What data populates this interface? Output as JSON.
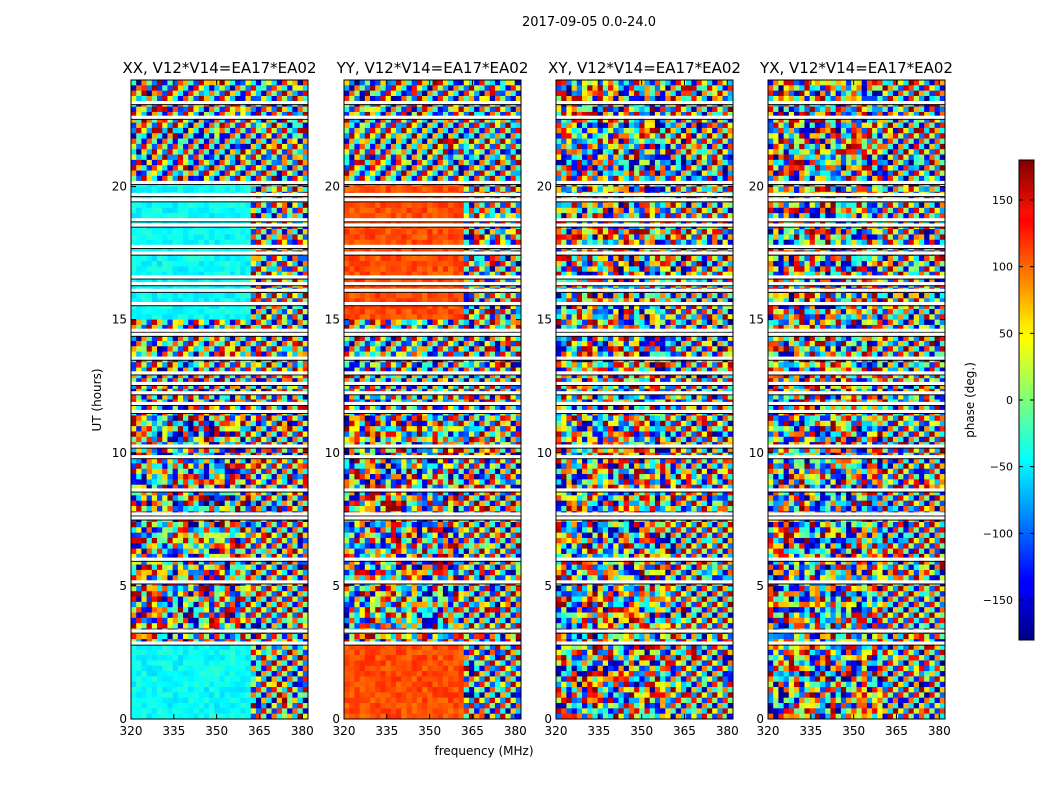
{
  "chart_data": {
    "type": "heatmap",
    "suptitle": "2017-09-05 0.0-24.0",
    "xlabel": "frequency (MHz)",
    "ylabel": "UT (hours)",
    "xlim": [
      320,
      382
    ],
    "ylim": [
      0,
      24
    ],
    "xticks": [
      "320",
      "335",
      "350",
      "365",
      "380"
    ],
    "xtick_values": [
      320,
      335,
      350,
      365,
      380
    ],
    "yticks": [
      "0",
      "5",
      "10",
      "15",
      "20"
    ],
    "ytick_values": [
      0,
      5,
      10,
      15,
      20
    ],
    "colorbar": {
      "label": "phase (deg.)",
      "range": [
        -180,
        180
      ],
      "ticks": [
        "−150",
        "−100",
        "−50",
        "0",
        "50",
        "100",
        "150"
      ],
      "tick_values": [
        -150,
        -100,
        -50,
        0,
        50,
        100,
        150
      ],
      "colormap": "jet"
    },
    "panels": [
      {
        "title": "XX, V12*V14=EA17*EA02"
      },
      {
        "title": "YY, V12*V14=EA17*EA02"
      },
      {
        "title": "XY, V12*V14=EA17*EA02"
      },
      {
        "title": "YX, V12*V14=EA17*EA02"
      }
    ],
    "flagged_ut_hours": [
      23.15,
      22.6,
      20.15,
      19.7,
      19.5,
      18.75,
      18.55,
      17.75,
      17.5,
      16.6,
      16.35,
      16.1,
      15.6,
      14.6,
      14.45,
      13.55,
      13.0,
      12.6,
      12.25,
      11.85,
      11.55,
      10.25,
      9.85,
      8.6,
      7.7,
      7.55,
      6.0,
      5.15,
      3.3,
      2.85
    ]
  }
}
